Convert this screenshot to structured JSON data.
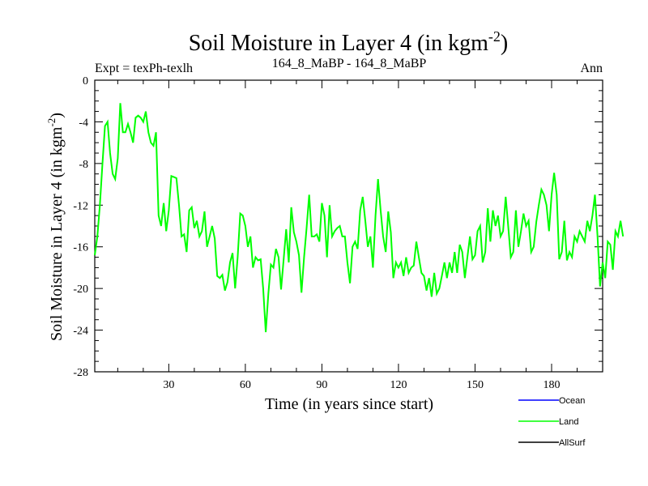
{
  "chart_data": {
    "type": "line",
    "title": "Soil Moisture in Layer 4 (in kgm",
    "title_sup": "-2",
    "title_close": ")",
    "subtitle_left": "Expt = texPh-texlh",
    "subtitle_center": "164_8_MaBP - 164_8_MaBP",
    "subtitle_right": "Ann",
    "xlabel": "Time (in years since start)",
    "ylabel": "Soil Moisture in Layer 4 (in kgm",
    "ylabel_sup": "-2",
    "ylabel_close": ")",
    "xlim": [
      1,
      200
    ],
    "ylim": [
      -28,
      0
    ],
    "xticks": [
      30,
      60,
      90,
      120,
      150,
      180
    ],
    "yticks": [
      0,
      -4,
      -8,
      -12,
      -16,
      -20,
      -24,
      -28
    ],
    "legend": [
      {
        "name": "Ocean",
        "color": "#0000ff"
      },
      {
        "name": "Land",
        "color": "#00ff00"
      },
      {
        "name": "AllSurf",
        "color": "#000000"
      }
    ],
    "series": [
      {
        "name": "Land",
        "color": "#00ff00",
        "x_start": 1,
        "values": [
          -16.8,
          -15.0,
          -12.0,
          -8.0,
          -4.4,
          -4.0,
          -7.0,
          -9.0,
          -9.5,
          -7.5,
          -2.2,
          -5.0,
          -5.0,
          -4.2,
          -5.0,
          -6.0,
          -3.6,
          -3.4,
          -3.6,
          -4.0,
          -3.0,
          -5.0,
          -6.0,
          -6.3,
          -5.0,
          -13.0,
          -14.0,
          -11.8,
          -14.5,
          -12.5,
          -9.2,
          -9.3,
          -9.4,
          -12.0,
          -15.0,
          -14.8,
          -16.5,
          -12.5,
          -12.2,
          -14.2,
          -13.5,
          -15.0,
          -14.5,
          -12.6,
          -16.0,
          -15.0,
          -14.0,
          -15.2,
          -18.8,
          -19.0,
          -18.7,
          -20.2,
          -19.4,
          -17.5,
          -16.6,
          -20.0,
          -17.0,
          -12.8,
          -13.0,
          -14.0,
          -16.0,
          -15.0,
          -18.0,
          -17.0,
          -17.3,
          -17.2,
          -20.0,
          -24.2,
          -20.5,
          -17.7,
          -18.0,
          -16.2,
          -17.0,
          -20.1,
          -17.2,
          -14.3,
          -17.5,
          -12.2,
          -14.6,
          -15.5,
          -16.8,
          -20.4,
          -17.0,
          -14.2,
          -11.0,
          -15.0,
          -15.0,
          -14.8,
          -15.5,
          -11.8,
          -13.0,
          -17.0,
          -12.0,
          -15.0,
          -14.5,
          -14.2,
          -14.0,
          -15.0,
          -15.0,
          -17.5,
          -19.5,
          -16.0,
          -15.5,
          -16.2,
          -12.5,
          -11.2,
          -13.5,
          -16.0,
          -15.0,
          -18.0,
          -13.0,
          -9.5,
          -12.5,
          -15.0,
          -16.5,
          -12.6,
          -14.6,
          -19.0,
          -17.5,
          -18.0,
          -17.5,
          -18.8,
          -17.0,
          -18.5,
          -18.0,
          -17.8,
          -15.5,
          -17.0,
          -18.5,
          -18.8,
          -20.2,
          -19.0,
          -20.8,
          -18.5,
          -20.5,
          -20.0,
          -18.8,
          -17.5,
          -19.0,
          -17.5,
          -18.5,
          -16.5,
          -18.5,
          -15.8,
          -16.5,
          -19.0,
          -17.0,
          -15.0,
          -17.2,
          -16.8,
          -14.5,
          -14.0,
          -17.5,
          -16.5,
          -12.3,
          -15.5,
          -12.5,
          -14.0,
          -13.0,
          -15.0,
          -14.5,
          -11.2,
          -14.0,
          -17.0,
          -16.5,
          -12.5,
          -16.0,
          -14.5,
          -12.8,
          -14.0,
          -13.5,
          -16.5,
          -16.0,
          -13.6,
          -12.0,
          -10.5,
          -11.0,
          -12.0,
          -14.5,
          -11.0,
          -8.9,
          -11.0,
          -17.2,
          -16.5,
          -13.5,
          -17.3,
          -16.5,
          -17.0,
          -15.0,
          -15.5,
          -14.5,
          -15.0,
          -15.5,
          -13.5,
          -14.5,
          -13.0,
          -11.0,
          -15.0,
          -19.8,
          -17.5,
          -19.0,
          -15.5,
          -15.8,
          -18.2,
          -14.5,
          -15.0,
          -13.5,
          -15.0
        ]
      }
    ]
  }
}
